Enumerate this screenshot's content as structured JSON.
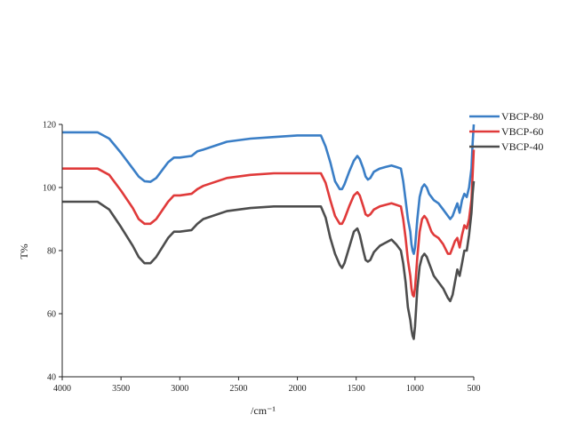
{
  "chart_data": {
    "type": "line",
    "xlabel": "/cm⁻¹",
    "ylabel": "T%",
    "xlim": [
      4000,
      500
    ],
    "ylim": [
      40,
      120
    ],
    "xticks": [
      4000,
      3500,
      3000,
      2500,
      2000,
      1500,
      1000,
      500
    ],
    "yticks": [
      40,
      60,
      80,
      100,
      120
    ],
    "grid": false,
    "legend": "top-right",
    "series": [
      {
        "name": "VBCP-80",
        "color": "#3a7ec6",
        "x": [
          4000,
          3700,
          3600,
          3500,
          3400,
          3350,
          3300,
          3250,
          3200,
          3100,
          3050,
          3000,
          2900,
          2850,
          2800,
          2600,
          2400,
          2200,
          2000,
          1800,
          1760,
          1720,
          1680,
          1640,
          1620,
          1600,
          1560,
          1520,
          1490,
          1470,
          1440,
          1420,
          1400,
          1380,
          1350,
          1300,
          1250,
          1200,
          1160,
          1120,
          1100,
          1080,
          1060,
          1040,
          1030,
          1020,
          1010,
          1000,
          980,
          960,
          940,
          920,
          900,
          880,
          860,
          840,
          800,
          760,
          720,
          700,
          680,
          660,
          640,
          620,
          600,
          580,
          560,
          540,
          520,
          510,
          500
        ],
        "values": [
          117.5,
          117.5,
          115.5,
          111,
          106,
          103.5,
          102,
          101.8,
          103,
          108,
          109.5,
          109.5,
          110,
          111.5,
          112,
          114.5,
          115.5,
          116,
          116.5,
          116.5,
          113,
          108,
          102,
          99.5,
          99.5,
          101,
          105,
          108.5,
          110,
          109,
          106,
          103.5,
          102.5,
          103,
          105,
          106,
          106.5,
          107,
          106.5,
          106,
          102,
          96,
          90,
          86,
          82,
          80,
          79,
          81,
          90,
          97,
          100,
          101,
          100,
          98,
          97,
          96,
          95,
          93,
          91,
          90,
          91,
          93,
          95,
          92,
          96,
          98,
          97,
          100,
          106,
          114,
          120
        ]
      },
      {
        "name": "VBCP-60",
        "color": "#e03a3a",
        "x": [
          4000,
          3700,
          3600,
          3500,
          3400,
          3350,
          3300,
          3250,
          3200,
          3100,
          3050,
          3000,
          2900,
          2850,
          2800,
          2600,
          2400,
          2200,
          2000,
          1800,
          1760,
          1720,
          1680,
          1640,
          1620,
          1600,
          1560,
          1520,
          1490,
          1470,
          1440,
          1420,
          1400,
          1380,
          1350,
          1300,
          1250,
          1200,
          1160,
          1120,
          1100,
          1080,
          1060,
          1040,
          1030,
          1020,
          1010,
          1000,
          980,
          960,
          940,
          920,
          900,
          880,
          860,
          840,
          800,
          760,
          720,
          700,
          680,
          660,
          640,
          620,
          600,
          580,
          560,
          540,
          520,
          510,
          500
        ],
        "values": [
          106,
          106,
          104,
          99,
          93.5,
          90,
          88.5,
          88.5,
          90,
          95.5,
          97.5,
          97.5,
          98,
          99.5,
          100.5,
          103,
          104,
          104.5,
          104.5,
          104.5,
          101.5,
          96,
          91,
          88.5,
          88.5,
          90,
          94,
          97.5,
          98.5,
          97.5,
          94,
          91.5,
          91,
          91.5,
          93,
          94,
          94.5,
          95,
          94.5,
          94,
          90,
          84,
          77,
          72,
          68,
          66,
          65.5,
          68,
          78,
          86,
          90,
          91,
          90,
          88,
          86,
          85,
          84,
          82,
          79,
          79,
          81,
          83,
          84,
          81,
          85,
          88,
          87,
          90,
          96,
          104,
          112
        ]
      },
      {
        "name": "VBCP-40",
        "color": "#4d4d4d",
        "x": [
          4000,
          3700,
          3600,
          3500,
          3400,
          3350,
          3300,
          3250,
          3200,
          3100,
          3050,
          3000,
          2900,
          2850,
          2800,
          2600,
          2400,
          2200,
          2000,
          1800,
          1760,
          1720,
          1680,
          1640,
          1620,
          1600,
          1560,
          1520,
          1490,
          1470,
          1440,
          1420,
          1400,
          1380,
          1350,
          1300,
          1250,
          1200,
          1160,
          1120,
          1100,
          1080,
          1060,
          1040,
          1030,
          1020,
          1010,
          1000,
          980,
          960,
          940,
          920,
          900,
          880,
          860,
          840,
          800,
          760,
          720,
          700,
          680,
          660,
          640,
          620,
          600,
          580,
          560,
          540,
          520,
          510,
          500
        ],
        "values": [
          95.5,
          95.5,
          93,
          87.5,
          81.5,
          78,
          76,
          76,
          78,
          84,
          86,
          86,
          86.5,
          88.5,
          90,
          92.5,
          93.5,
          94,
          94,
          94,
          90.5,
          84,
          79,
          75.5,
          74.5,
          76,
          81,
          86,
          87,
          85,
          80,
          77,
          76.5,
          77,
          79.5,
          81.5,
          82.5,
          83.5,
          82,
          80,
          76,
          70,
          62,
          58,
          55,
          53,
          52,
          56,
          68,
          75,
          78,
          79,
          78,
          76,
          74,
          72,
          70,
          68,
          65,
          64,
          66,
          70,
          74,
          72,
          76,
          80,
          80,
          85,
          92,
          98,
          102
        ]
      }
    ]
  }
}
